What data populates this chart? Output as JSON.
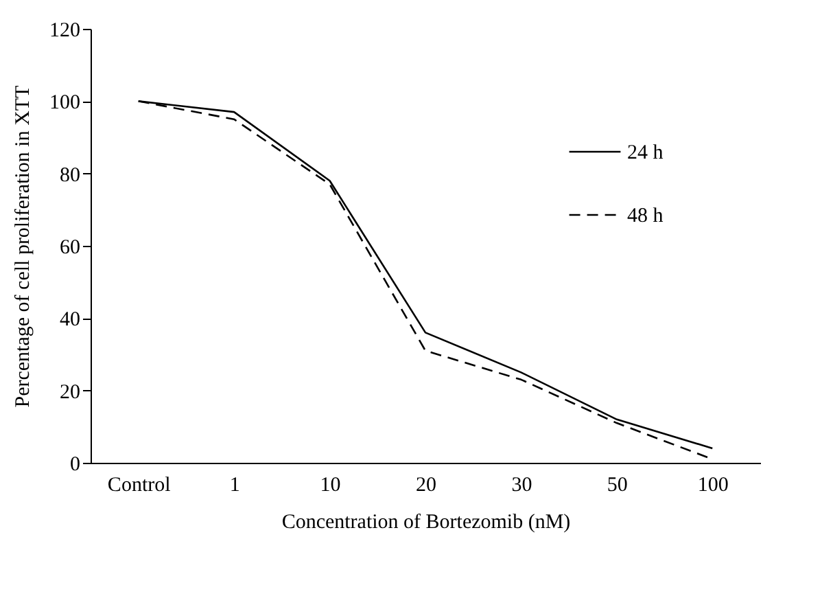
{
  "chart_data": {
    "type": "line",
    "xlabel": "Concentration of Bortezomib (nM)",
    "ylabel": "Percentage of cell proliferation in XTT",
    "categories": [
      "Control",
      "1",
      "10",
      "20",
      "30",
      "50",
      "100"
    ],
    "series": [
      {
        "name": "24 h",
        "color": "#000000",
        "line_style": "solid",
        "values": [
          100,
          97,
          78,
          36,
          25,
          12,
          4
        ]
      },
      {
        "name": "48 h",
        "color": "#000000",
        "line_style": "dashed",
        "values": [
          100,
          95,
          77,
          31,
          23,
          11,
          1
        ]
      }
    ],
    "ylim": [
      0,
      120
    ],
    "yticks": [
      0,
      20,
      40,
      60,
      80,
      100,
      120
    ],
    "grid": false,
    "legend": "top right",
    "marker": "none"
  }
}
